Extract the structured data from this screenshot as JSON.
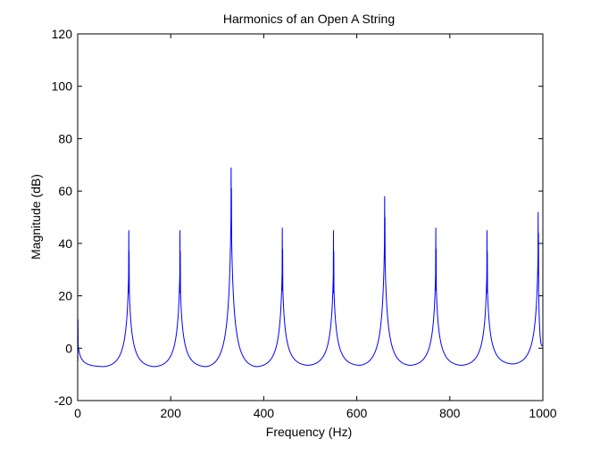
{
  "chart_data": {
    "type": "line",
    "title": "Harmonics of an Open A String",
    "xlabel": "Frequency (Hz)",
    "ylabel": "Magnitude (dB)",
    "xlim": [
      0,
      1000
    ],
    "ylim": [
      -20,
      120
    ],
    "xticks": [
      0,
      200,
      400,
      600,
      800,
      1000
    ],
    "yticks": [
      -20,
      0,
      20,
      40,
      60,
      80,
      100,
      120
    ],
    "grid": false,
    "line_color": "#0000ff",
    "series": [
      {
        "peaks": [
          {
            "x": 0,
            "y": 19
          },
          {
            "x": 110,
            "y": 45
          },
          {
            "x": 220,
            "y": 45
          },
          {
            "x": 330,
            "y": 69
          },
          {
            "x": 440,
            "y": 46
          },
          {
            "x": 550,
            "y": 45
          },
          {
            "x": 660,
            "y": 58
          },
          {
            "x": 770,
            "y": 46
          },
          {
            "x": 880,
            "y": 45
          },
          {
            "x": 990,
            "y": 52
          }
        ],
        "troughs": [
          {
            "x": 55,
            "y": -7
          },
          {
            "x": 165,
            "y": -7
          },
          {
            "x": 275,
            "y": -7
          },
          {
            "x": 385,
            "y": -7
          },
          {
            "x": 495,
            "y": -6.5
          },
          {
            "x": 605,
            "y": -6.5
          },
          {
            "x": 715,
            "y": -6.5
          },
          {
            "x": 825,
            "y": -6.5
          },
          {
            "x": 935,
            "y": -6
          },
          {
            "x": 1000,
            "y": 1
          }
        ]
      }
    ]
  }
}
